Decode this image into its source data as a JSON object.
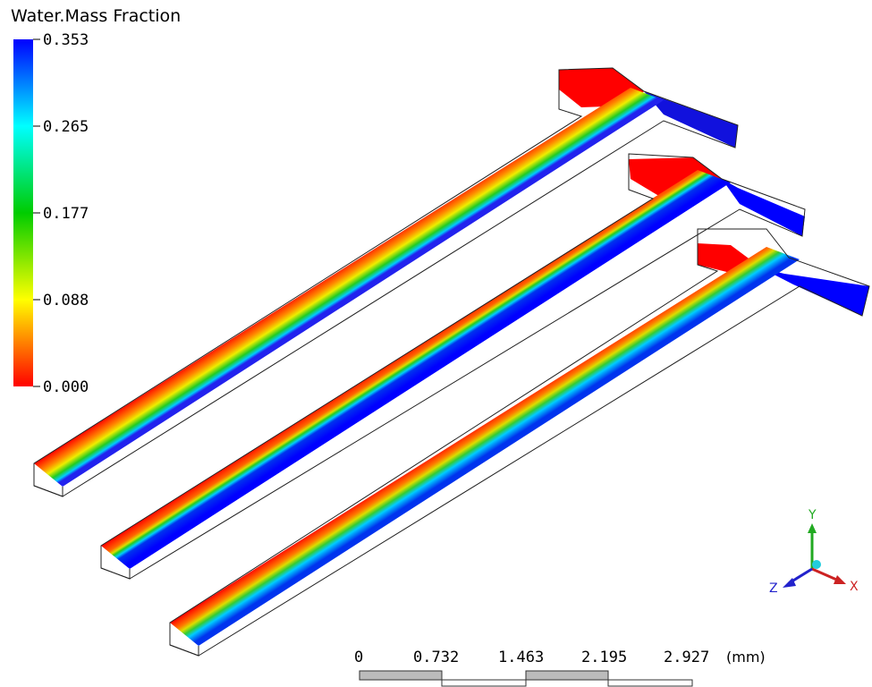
{
  "legend": {
    "title": "Water.Mass Fraction",
    "ticks": [
      "0.353",
      "0.265",
      "0.177",
      "0.088",
      "0.000"
    ]
  },
  "scale_bar": {
    "labels": [
      "0",
      "0.732",
      "1.463",
      "2.195",
      "2.927"
    ],
    "unit": "(mm)"
  },
  "axes": {
    "y": "Y",
    "z": "Z",
    "x": "X"
  }
}
